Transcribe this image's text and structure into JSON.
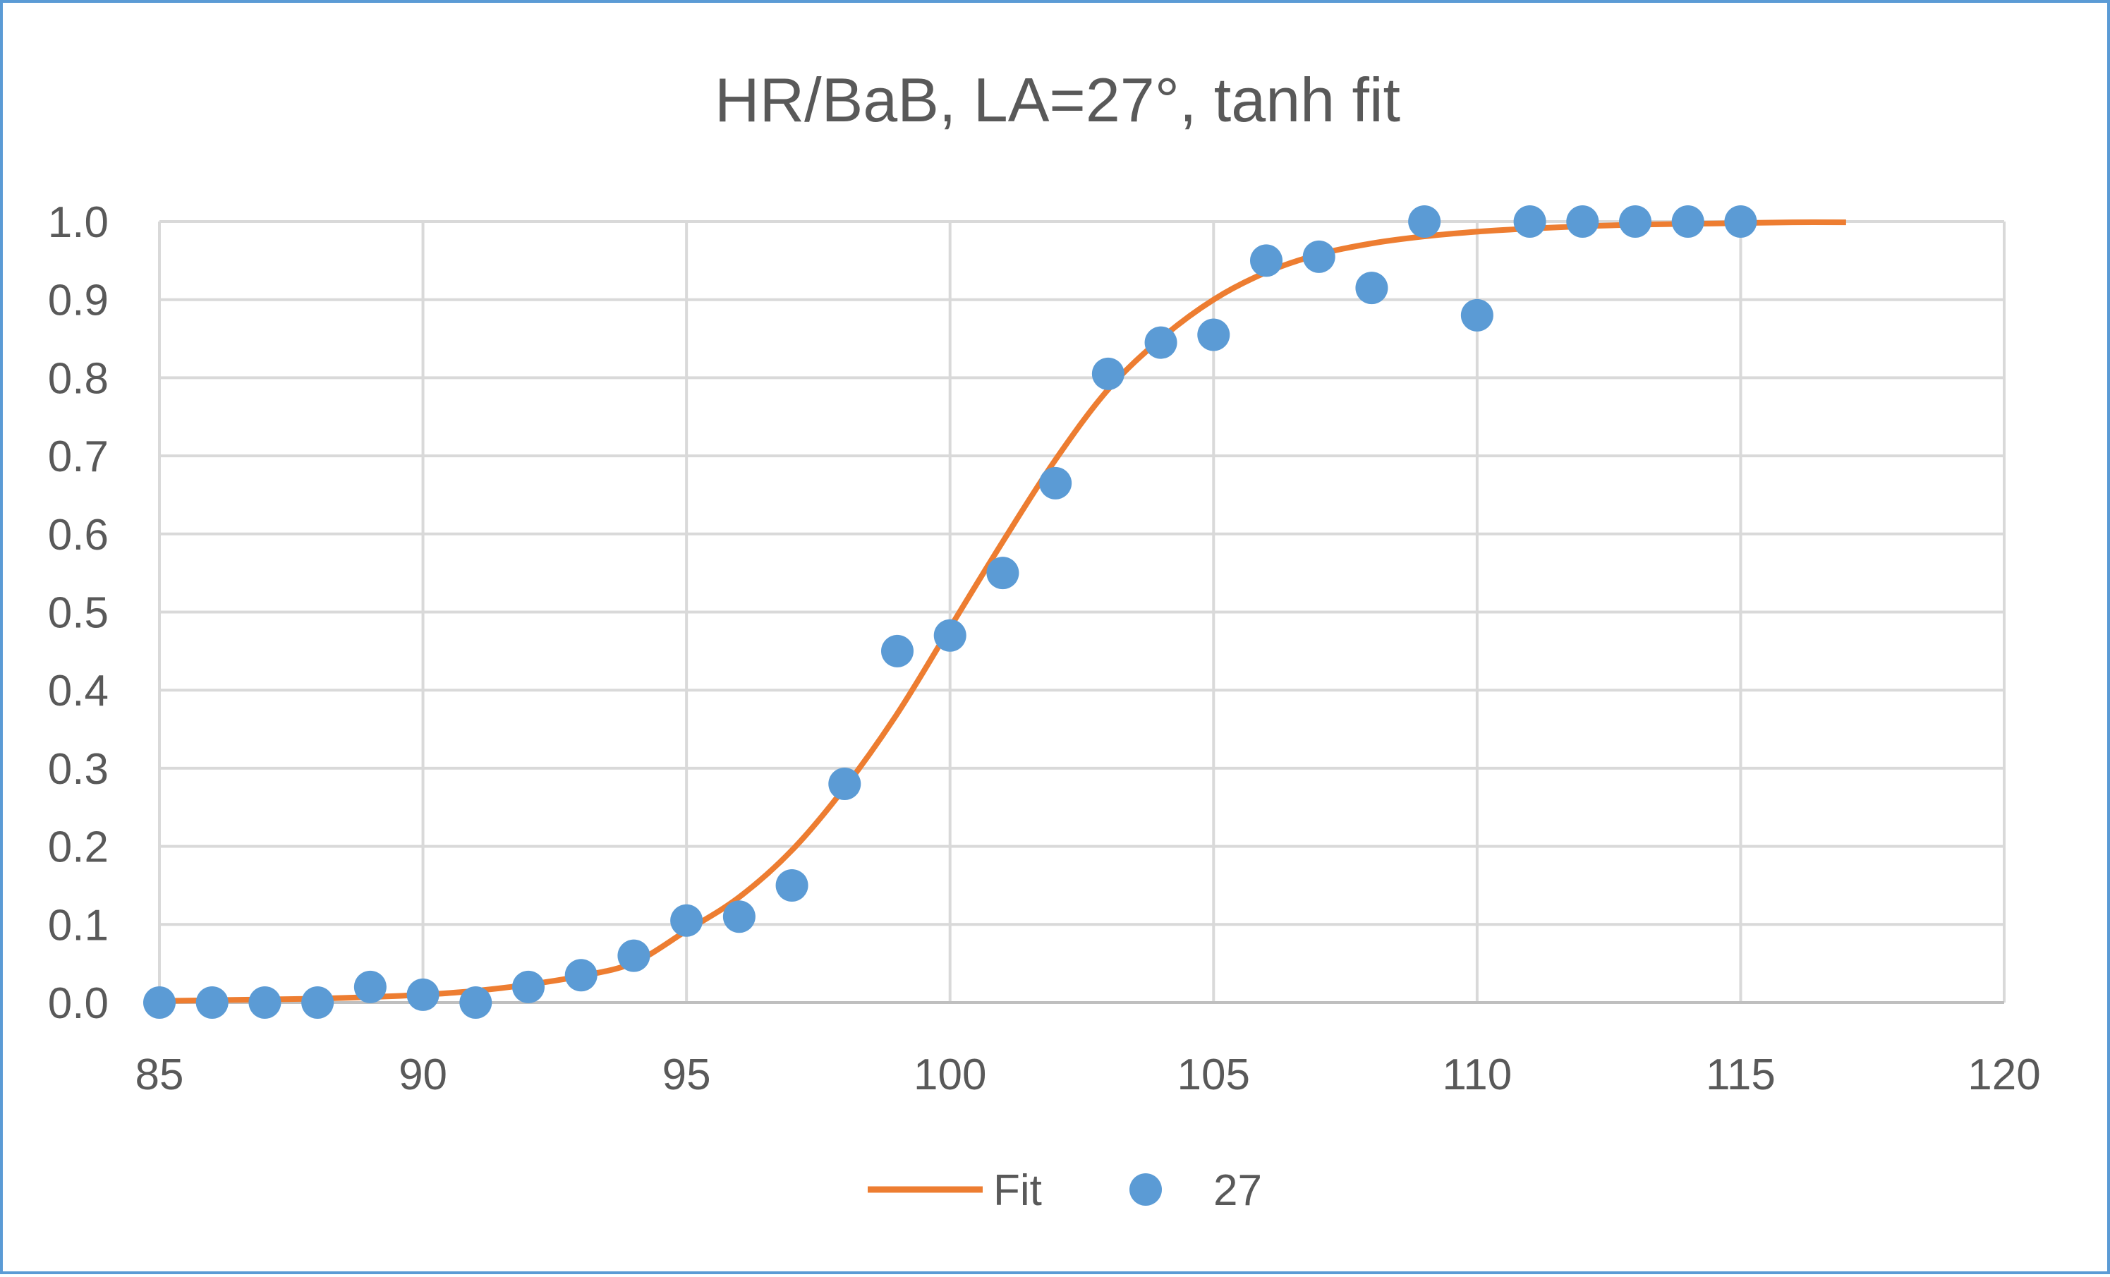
{
  "chart_data": {
    "type": "scatter",
    "title": "HR/BaB, LA=27°, tanh fit",
    "xlabel": "",
    "ylabel": "",
    "xlim": [
      85,
      120
    ],
    "ylim": [
      0.0,
      1.0
    ],
    "x_ticks": [
      85,
      90,
      95,
      100,
      105,
      110,
      115,
      120
    ],
    "y_ticks": [
      0.0,
      0.1,
      0.2,
      0.3,
      0.4,
      0.5,
      0.6,
      0.7,
      0.8,
      0.9,
      1.0
    ],
    "grid": true,
    "legend_position": "bottom",
    "series": [
      {
        "name": "Fit",
        "kind": "line",
        "color": "#ed7d31",
        "x": [
          85,
          86,
          87,
          88,
          89,
          90,
          91,
          92,
          93,
          94,
          95,
          96,
          97,
          98,
          99,
          100,
          101,
          102,
          103,
          104,
          105,
          106,
          107,
          108,
          109,
          110,
          111,
          112,
          113,
          114,
          115,
          116,
          117
        ],
        "y": [
          0.002,
          0.003,
          0.004,
          0.005,
          0.007,
          0.01,
          0.015,
          0.023,
          0.034,
          0.051,
          0.092,
          0.135,
          0.195,
          0.275,
          0.37,
          0.48,
          0.59,
          0.695,
          0.785,
          0.85,
          0.9,
          0.935,
          0.958,
          0.972,
          0.981,
          0.987,
          0.991,
          0.994,
          0.996,
          0.997,
          0.998,
          0.999,
          0.999
        ]
      },
      {
        "name": "27",
        "kind": "scatter",
        "color": "#5b9bd5",
        "x": [
          85,
          86,
          87,
          88,
          89,
          90,
          91,
          92,
          93,
          94,
          95,
          96,
          97,
          98,
          99,
          100,
          101,
          102,
          103,
          104,
          105,
          106,
          107,
          108,
          109,
          110,
          111,
          112,
          113,
          114,
          115
        ],
        "y": [
          0.0,
          0.0,
          0.0,
          0.0,
          0.02,
          0.01,
          0.0,
          0.02,
          0.035,
          0.06,
          0.105,
          0.11,
          0.15,
          0.28,
          0.45,
          0.47,
          0.55,
          0.665,
          0.805,
          0.845,
          0.855,
          0.95,
          0.955,
          0.915,
          1.0,
          0.88,
          1.0,
          1.0,
          1.0,
          1.0,
          1.0
        ]
      }
    ]
  }
}
